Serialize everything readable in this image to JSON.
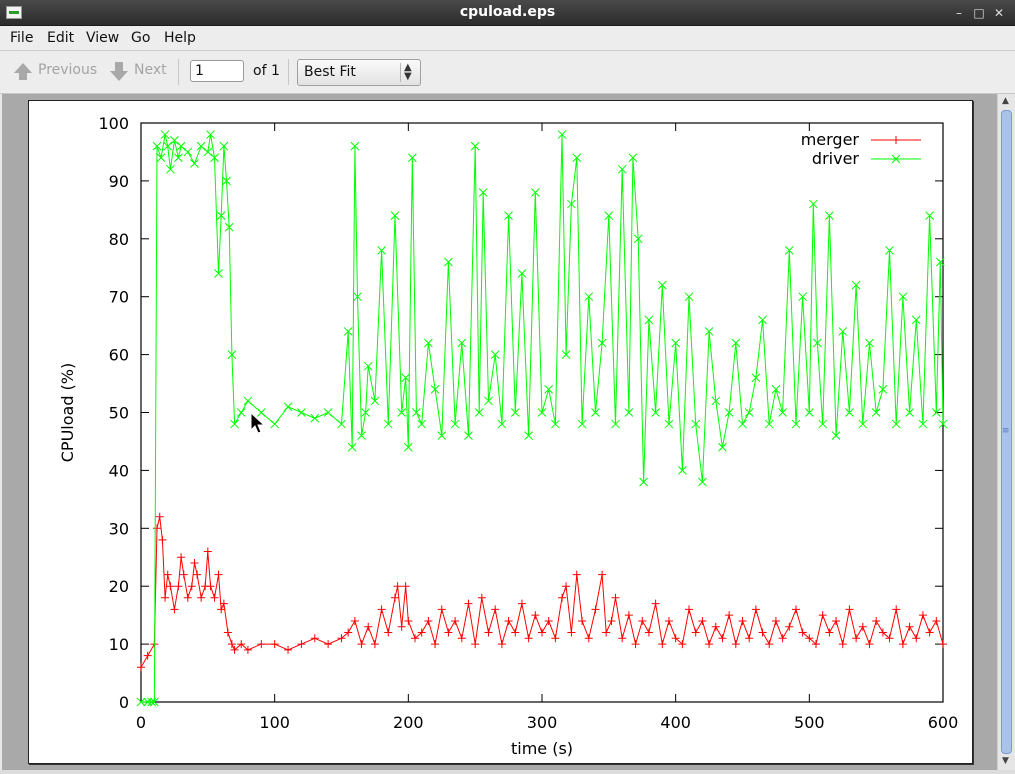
{
  "window": {
    "title": "cpuload.eps",
    "app_icon": "document-viewer-icon"
  },
  "menu": {
    "items": [
      "File",
      "Edit",
      "View",
      "Go",
      "Help"
    ]
  },
  "toolbar": {
    "previous_label": "Previous",
    "next_label": "Next",
    "page_value": "1",
    "page_total_label": "of 1",
    "zoom_value": "Best Fit"
  },
  "colors": {
    "merger": "#ff0000",
    "driver": "#00ff00",
    "titlebar": "#2b2b2b"
  },
  "chart_data": {
    "type": "line",
    "xlabel": "time (s)",
    "ylabel": "CPUload (%)",
    "xlim": [
      0,
      600
    ],
    "ylim": [
      0,
      100
    ],
    "xticks": [
      0,
      100,
      200,
      300,
      400,
      500,
      600
    ],
    "yticks": [
      0,
      10,
      20,
      30,
      40,
      50,
      60,
      70,
      80,
      90,
      100
    ],
    "legend": "top-right",
    "series": [
      {
        "name": "merger",
        "color": "#ff0000",
        "marker": "+",
        "x": [
          0,
          5,
          10,
          12,
          14,
          16,
          18,
          20,
          22,
          25,
          28,
          30,
          32,
          35,
          38,
          40,
          42,
          45,
          48,
          50,
          52,
          55,
          58,
          60,
          62,
          65,
          68,
          70,
          75,
          80,
          90,
          100,
          110,
          120,
          130,
          140,
          150,
          155,
          160,
          165,
          170,
          175,
          180,
          185,
          190,
          192,
          195,
          198,
          200,
          205,
          210,
          215,
          220,
          225,
          230,
          235,
          240,
          245,
          250,
          255,
          260,
          265,
          270,
          275,
          280,
          285,
          290,
          295,
          300,
          305,
          310,
          315,
          318,
          322,
          326,
          330,
          335,
          340,
          345,
          348,
          352,
          355,
          360,
          365,
          370,
          375,
          380,
          385,
          390,
          395,
          400,
          405,
          410,
          415,
          420,
          425,
          430,
          435,
          440,
          445,
          450,
          455,
          460,
          465,
          470,
          475,
          480,
          485,
          490,
          495,
          500,
          505,
          510,
          515,
          520,
          525,
          530,
          535,
          540,
          545,
          550,
          555,
          560,
          565,
          570,
          575,
          580,
          585,
          590,
          595,
          600
        ],
        "values": [
          6,
          8,
          10,
          30,
          32,
          28,
          18,
          22,
          20,
          16,
          20,
          25,
          22,
          18,
          20,
          24,
          22,
          18,
          20,
          26,
          20,
          18,
          22,
          16,
          17,
          12,
          10,
          9,
          10,
          9,
          10,
          10,
          9,
          10,
          11,
          10,
          11,
          12,
          14,
          10,
          13,
          10,
          16,
          12,
          18,
          20,
          13,
          20,
          14,
          11,
          12,
          14,
          10,
          16,
          12,
          14,
          11,
          17,
          10,
          18,
          12,
          16,
          10,
          14,
          12,
          17,
          11,
          15,
          12,
          14,
          11,
          18,
          20,
          12,
          22,
          14,
          11,
          16,
          22,
          12,
          14,
          18,
          11,
          15,
          10,
          14,
          12,
          17,
          10,
          14,
          11,
          10,
          16,
          12,
          14,
          10,
          13,
          11,
          15,
          10,
          14,
          11,
          16,
          12,
          10,
          14,
          11,
          13,
          16,
          12,
          11,
          10,
          15,
          12,
          14,
          10,
          16,
          11,
          13,
          10,
          14,
          12,
          11,
          16,
          10,
          13,
          11,
          15,
          12,
          14,
          10
        ]
      },
      {
        "name": "driver",
        "color": "#00ff00",
        "marker": "x",
        "x": [
          0,
          5,
          8,
          10,
          12,
          15,
          18,
          20,
          22,
          25,
          28,
          30,
          35,
          40,
          45,
          50,
          52,
          55,
          58,
          60,
          62,
          64,
          66,
          68,
          70,
          75,
          80,
          90,
          100,
          110,
          120,
          130,
          140,
          150,
          155,
          158,
          160,
          162,
          165,
          168,
          170,
          175,
          180,
          185,
          190,
          195,
          198,
          200,
          203,
          206,
          210,
          215,
          220,
          225,
          230,
          235,
          240,
          245,
          250,
          253,
          256,
          260,
          265,
          270,
          275,
          280,
          285,
          290,
          295,
          300,
          305,
          310,
          315,
          318,
          322,
          326,
          330,
          335,
          340,
          345,
          350,
          355,
          360,
          365,
          368,
          372,
          376,
          380,
          385,
          390,
          395,
          400,
          405,
          410,
          415,
          420,
          425,
          430,
          435,
          440,
          445,
          450,
          455,
          460,
          465,
          470,
          475,
          480,
          485,
          490,
          495,
          500,
          503,
          506,
          510,
          515,
          520,
          525,
          530,
          535,
          540,
          545,
          550,
          555,
          560,
          565,
          570,
          575,
          580,
          585,
          590,
          595,
          598,
          600
        ],
        "values": [
          0,
          0,
          0,
          0,
          96,
          94,
          98,
          96,
          92,
          97,
          94,
          96,
          95,
          93,
          96,
          95,
          98,
          94,
          74,
          84,
          96,
          90,
          82,
          60,
          48,
          50,
          52,
          50,
          48,
          51,
          50,
          49,
          50,
          48,
          64,
          44,
          96,
          70,
          46,
          50,
          58,
          52,
          78,
          48,
          84,
          50,
          56,
          44,
          94,
          50,
          48,
          62,
          54,
          46,
          76,
          48,
          62,
          46,
          96,
          50,
          88,
          52,
          60,
          48,
          84,
          50,
          74,
          46,
          88,
          50,
          54,
          48,
          98,
          60,
          86,
          94,
          48,
          70,
          50,
          62,
          84,
          48,
          92,
          50,
          94,
          80,
          38,
          66,
          50,
          72,
          48,
          62,
          40,
          70,
          48,
          38,
          64,
          52,
          44,
          50,
          62,
          48,
          50,
          56,
          66,
          48,
          54,
          50,
          78,
          48,
          70,
          50,
          86,
          62,
          48,
          84,
          46,
          64,
          50,
          72,
          48,
          62,
          50,
          54,
          78,
          48,
          70,
          50,
          66,
          48,
          84,
          50,
          76,
          48
        ]
      }
    ]
  }
}
